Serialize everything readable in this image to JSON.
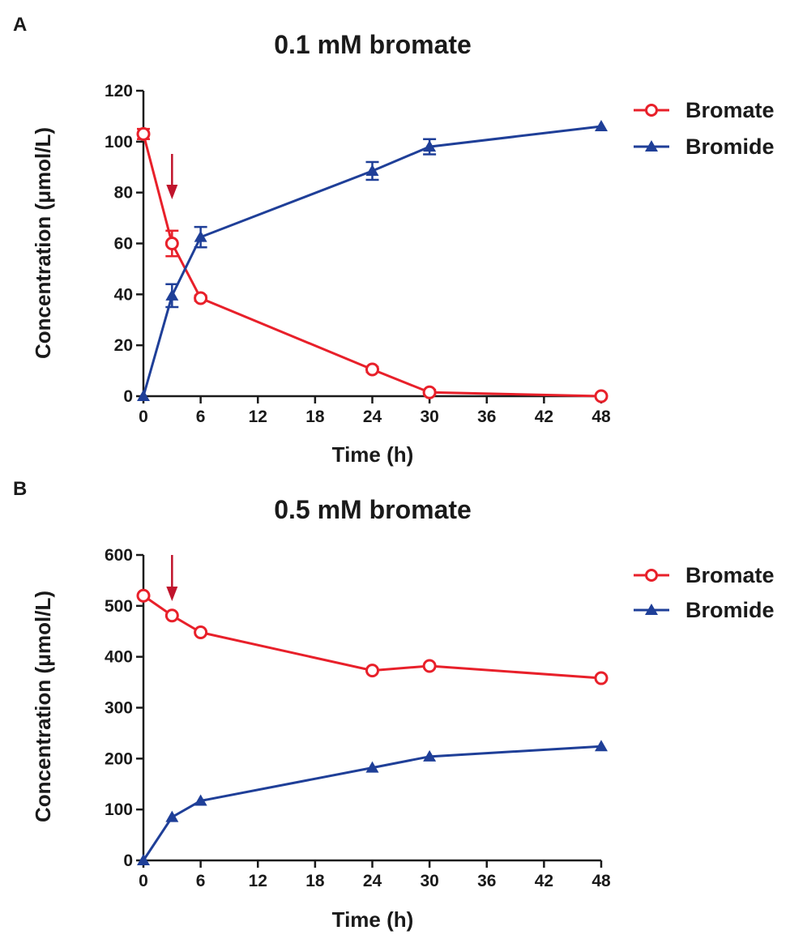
{
  "colors": {
    "bromate": "#e8202a",
    "bromide": "#1f3f98",
    "arrow": "#c0142c",
    "axis": "#1a1a1a"
  },
  "chart_data": [
    {
      "type": "line",
      "panel_label": "A",
      "title": "0.1 mM bromate",
      "xlabel": "Time (h)",
      "ylabel": "Concentration (μmol/L)",
      "xlim": [
        0,
        48
      ],
      "ylim": [
        0,
        120
      ],
      "x_ticks": [
        0,
        6,
        12,
        18,
        24,
        30,
        36,
        42,
        48
      ],
      "y_ticks": [
        0,
        20,
        40,
        60,
        80,
        100,
        120
      ],
      "legend_position": "top-right",
      "annotation": {
        "type": "arrow",
        "x": 3,
        "description": "downward arrow"
      },
      "series": [
        {
          "name": "Bromate",
          "marker": "open-circle",
          "color_key": "bromate",
          "x": [
            0,
            3,
            6,
            24,
            30,
            48
          ],
          "y": [
            103,
            60,
            38.5,
            10.5,
            1.5,
            0
          ],
          "err": [
            2,
            5,
            1,
            1,
            1,
            0
          ]
        },
        {
          "name": "Bromide",
          "marker": "filled-triangle",
          "color_key": "bromide",
          "x": [
            0,
            3,
            6,
            24,
            30,
            48
          ],
          "y": [
            0,
            39.5,
            62.5,
            88.5,
            98,
            106
          ],
          "err": [
            0,
            4.5,
            4,
            3.5,
            3,
            0
          ]
        }
      ]
    },
    {
      "type": "line",
      "panel_label": "B",
      "title": "0.5 mM bromate",
      "xlabel": "Time (h)",
      "ylabel": "Concentration (μmol/L)",
      "xlim": [
        0,
        48
      ],
      "ylim": [
        0,
        600
      ],
      "x_ticks": [
        0,
        6,
        12,
        18,
        24,
        30,
        36,
        42,
        48
      ],
      "y_ticks": [
        0,
        100,
        200,
        300,
        400,
        500,
        600
      ],
      "legend_position": "top-right",
      "annotation": {
        "type": "arrow",
        "x": 3,
        "description": "downward arrow"
      },
      "series": [
        {
          "name": "Bromate",
          "marker": "open-circle",
          "color_key": "bromate",
          "x": [
            0,
            3,
            6,
            24,
            30,
            48
          ],
          "y": [
            520,
            481,
            448,
            373,
            382,
            358
          ],
          "err": [
            0,
            0,
            0,
            0,
            0,
            0
          ]
        },
        {
          "name": "Bromide",
          "marker": "filled-triangle",
          "color_key": "bromide",
          "x": [
            0,
            3,
            6,
            24,
            30,
            48
          ],
          "y": [
            0,
            85,
            117,
            182,
            204,
            224
          ],
          "err": [
            0,
            0,
            0,
            0,
            0,
            0
          ]
        }
      ]
    }
  ]
}
